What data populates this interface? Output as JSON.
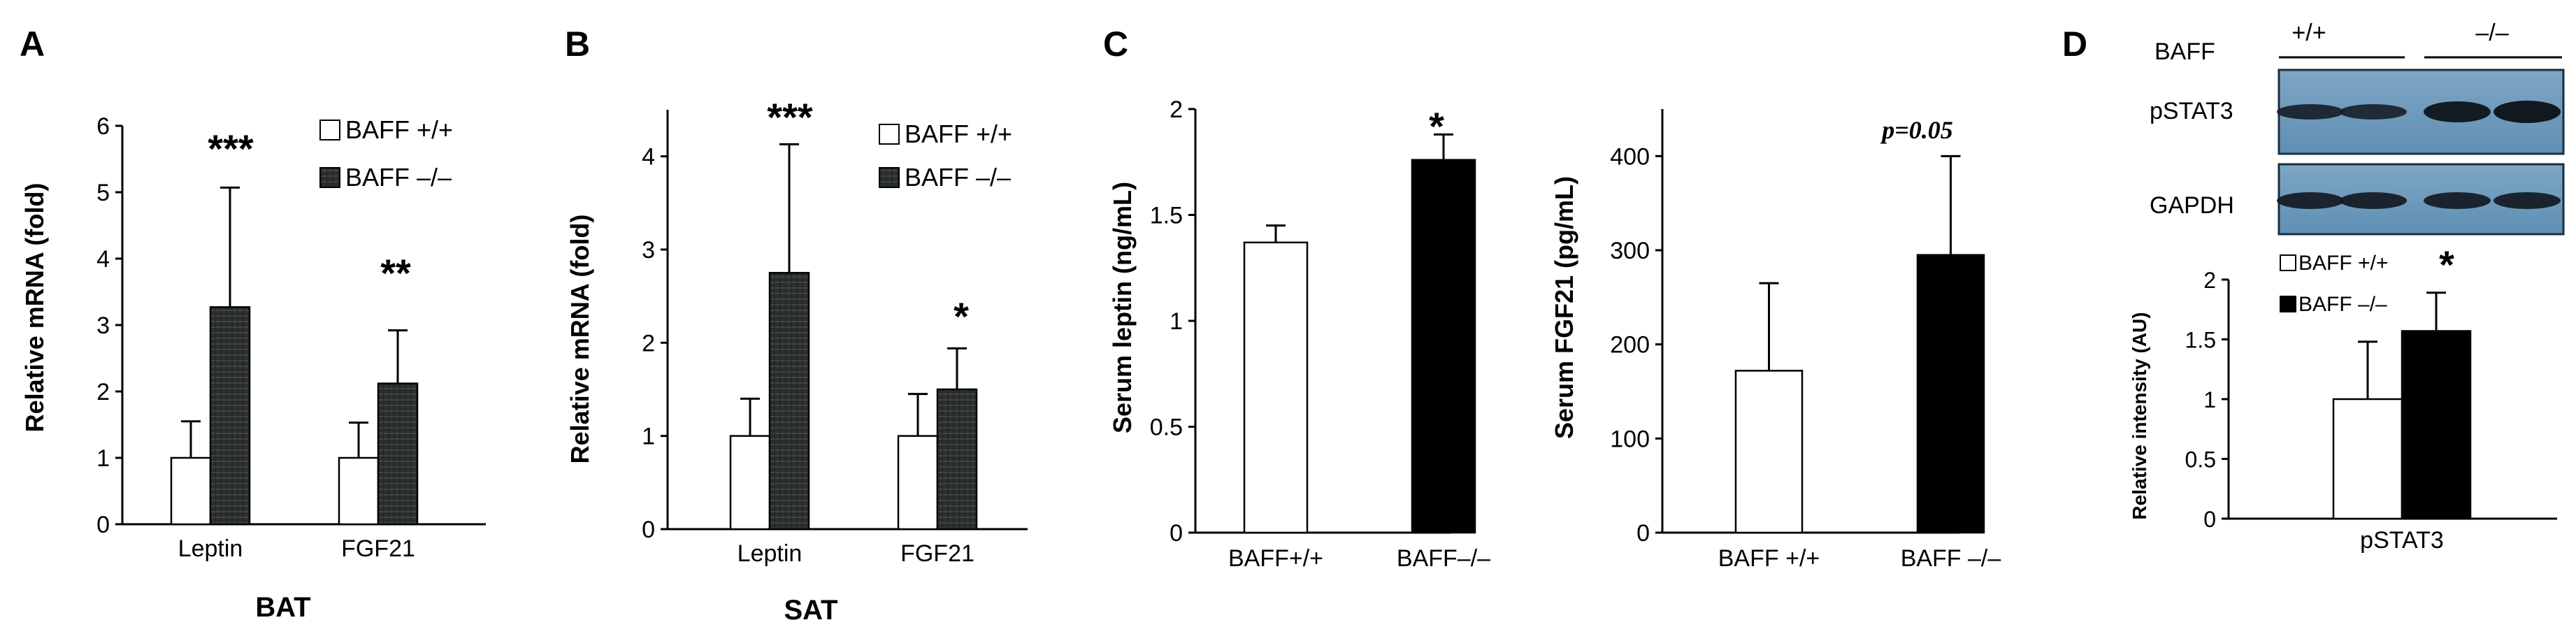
{
  "panels": {
    "A": {
      "letter": "A",
      "ylabel": "Relative mRNA (fold)",
      "xlabel": "BAT",
      "legend": [
        "BAFF +/+",
        "BAFF –/–"
      ],
      "stars": [
        "***",
        "**"
      ]
    },
    "B": {
      "letter": "B",
      "ylabel": "Relative mRNA (fold)",
      "xlabel": "SAT",
      "legend": [
        "BAFF +/+",
        "BAFF –/–"
      ],
      "stars": [
        "***",
        "*"
      ]
    },
    "C": {
      "letter": "C",
      "left_ylabel": "Serum leptin (ng/mL)",
      "left_star": "*",
      "right_ylabel": "Serum FGF21 (pg/mL)",
      "right_pvalue": "p=0.05"
    },
    "D": {
      "letter": "D",
      "row_label": "BAFF",
      "genotypes": [
        "+/+",
        "–/–"
      ],
      "blots": [
        "pSTAT3",
        "GAPDH"
      ],
      "ylabel": "Relative intensity (AU)",
      "legend": [
        "BAFF +/+",
        "BAFF –/–"
      ],
      "star": "*"
    }
  },
  "colors": {
    "wildtype_fill": "#ffffff",
    "knockout_hatched": "#2b2f2d",
    "knockout_solid": "#000000",
    "axis": "#000000"
  },
  "chart_data": [
    {
      "id": "A",
      "type": "bar",
      "categories": [
        "Leptin",
        "FGF21"
      ],
      "xlabel": "BAT",
      "ylabel": "Relative mRNA (fold)",
      "ylim": [
        0,
        6
      ],
      "yticks": [
        0,
        1,
        2,
        3,
        4,
        5,
        6
      ],
      "series": [
        {
          "name": "BAFF +/+",
          "values": [
            1.0,
            1.0
          ],
          "errors": [
            0.55,
            0.53
          ]
        },
        {
          "name": "BAFF –/–",
          "values": [
            3.27,
            2.12
          ],
          "errors": [
            1.8,
            0.8
          ]
        }
      ],
      "annotations": [
        "***",
        "**"
      ]
    },
    {
      "id": "B",
      "type": "bar",
      "categories": [
        "Leptin",
        "FGF21"
      ],
      "xlabel": "SAT",
      "ylabel": "Relative mRNA (fold)",
      "ylim": [
        0,
        4.5
      ],
      "yticks": [
        0,
        1,
        2,
        3,
        4
      ],
      "series": [
        {
          "name": "BAFF +/+",
          "values": [
            1.0,
            1.0
          ],
          "errors": [
            0.4,
            0.45
          ]
        },
        {
          "name": "BAFF –/–",
          "values": [
            2.75,
            1.5
          ],
          "errors": [
            1.38,
            0.44
          ]
        }
      ],
      "annotations": [
        "***",
        "*"
      ]
    },
    {
      "id": "C-leptin",
      "type": "bar",
      "categories": [
        "BAFF+/+",
        "BAFF–/–"
      ],
      "ylabel": "Serum leptin (ng/mL)",
      "ylim": [
        0,
        2
      ],
      "yticks": [
        "0",
        "0.5",
        "1",
        "1.5",
        "2"
      ],
      "values": [
        1.37,
        1.76
      ],
      "errors": [
        0.08,
        0.12
      ],
      "annotations": [
        "",
        "*"
      ]
    },
    {
      "id": "C-FGF21",
      "type": "bar",
      "categories": [
        "BAFF +/+",
        "BAFF –/–"
      ],
      "ylabel": "Serum FGF21 (pg/mL)",
      "ylim": [
        0,
        450
      ],
      "yticks": [
        "0",
        "100",
        "200",
        "300",
        "400"
      ],
      "values": [
        172,
        295
      ],
      "errors": [
        93,
        105
      ],
      "annotations": [
        "",
        "p=0.05"
      ]
    },
    {
      "id": "D",
      "type": "bar",
      "categories": [
        "pSTAT3"
      ],
      "ylabel": "Relative intensity (AU)",
      "ylim": [
        0,
        2
      ],
      "yticks": [
        "0",
        "0.5",
        "1",
        "1.5",
        "2"
      ],
      "series": [
        {
          "name": "BAFF +/+",
          "values": [
            1.0
          ],
          "errors": [
            0.48
          ]
        },
        {
          "name": "BAFF –/–",
          "values": [
            1.57
          ],
          "errors": [
            0.32
          ]
        }
      ],
      "annotations": [
        "*"
      ]
    }
  ]
}
